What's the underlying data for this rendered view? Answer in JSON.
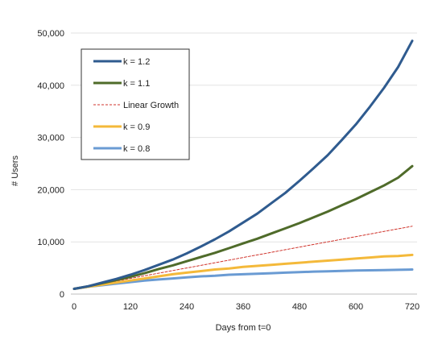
{
  "chart_data": {
    "type": "line",
    "title": "",
    "xlabel": "Days from t=0",
    "ylabel": "# Users",
    "xlim": [
      0,
      720
    ],
    "ylim": [
      0,
      50000
    ],
    "x_ticks": [
      0,
      120,
      240,
      360,
      480,
      600,
      720
    ],
    "x_tick_labels": [
      "0",
      "120",
      "240",
      "360",
      "480",
      "600",
      "720"
    ],
    "y_ticks": [
      0,
      10000,
      20000,
      30000,
      40000,
      50000
    ],
    "y_tick_labels": [
      "0",
      "10,000",
      "20,000",
      "30,000",
      "40,000",
      "50,000"
    ],
    "grid": "horizontal",
    "legend_position": "top-left",
    "x": [
      0,
      30,
      60,
      90,
      120,
      150,
      180,
      210,
      240,
      270,
      300,
      330,
      360,
      390,
      420,
      450,
      480,
      510,
      540,
      570,
      600,
      630,
      660,
      690,
      720
    ],
    "series": [
      {
        "name": "k = 1.2",
        "color": "#2f5b8f",
        "style": "solid",
        "values": [
          1000,
          1500,
          2200,
          2900,
          3700,
          4600,
          5600,
          6600,
          7800,
          9100,
          10500,
          12000,
          13700,
          15400,
          17400,
          19400,
          21700,
          24100,
          26600,
          29500,
          32500,
          35900,
          39500,
          43500,
          48500
        ]
      },
      {
        "name": "k = 1.1",
        "color": "#4f6b2a",
        "style": "solid",
        "values": [
          1000,
          1500,
          2100,
          2700,
          3300,
          4000,
          4800,
          5500,
          6300,
          7100,
          7900,
          8800,
          9700,
          10600,
          11600,
          12600,
          13600,
          14700,
          15800,
          17000,
          18200,
          19500,
          20800,
          22300,
          24500
        ]
      },
      {
        "name": "Linear Growth",
        "color": "#d0342c",
        "style": "dashed",
        "values": [
          1000,
          1500,
          2000,
          2500,
          3000,
          3500,
          4000,
          4500,
          5000,
          5500,
          6000,
          6500,
          7000,
          7500,
          8000,
          8500,
          9000,
          9500,
          10000,
          10500,
          11000,
          11500,
          12000,
          12500,
          13000
        ]
      },
      {
        "name": "k = 0.9",
        "color": "#f4b93a",
        "style": "solid",
        "values": [
          1000,
          1400,
          1800,
          2200,
          2600,
          3000,
          3400,
          3800,
          4100,
          4400,
          4700,
          4900,
          5200,
          5400,
          5600,
          5800,
          6000,
          6200,
          6400,
          6600,
          6800,
          7000,
          7200,
          7300,
          7500
        ]
      },
      {
        "name": "k = 0.8",
        "color": "#6a9bd3",
        "style": "solid",
        "values": [
          1000,
          1400,
          1700,
          2000,
          2300,
          2600,
          2800,
          3000,
          3200,
          3400,
          3500,
          3700,
          3800,
          3900,
          4000,
          4100,
          4200,
          4300,
          4350,
          4450,
          4500,
          4550,
          4600,
          4650,
          4700
        ]
      }
    ]
  }
}
